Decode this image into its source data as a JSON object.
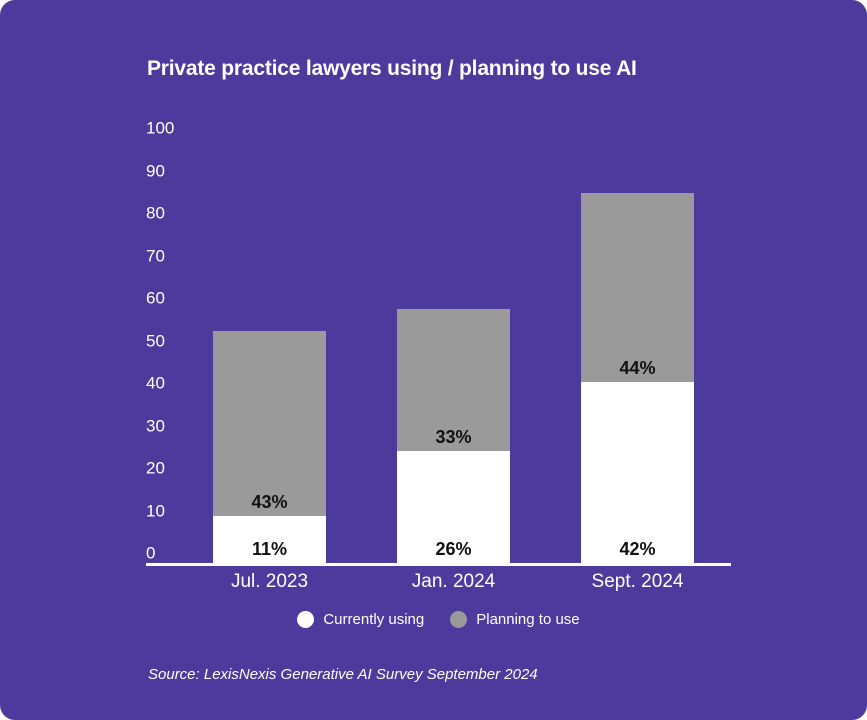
{
  "title": "Private practice lawyers using / planning to use AI",
  "source": "Source: LexisNexis Generative AI Survey September 2024",
  "colors": {
    "card_bg": "#4c3a9c",
    "page_bg": "#ffffff",
    "currently_using": "#ffffff",
    "planning_to_use": "#9a9a9a",
    "axis_line": "#ffffff",
    "data_label": "#111111",
    "text": "#ffffff"
  },
  "legend": {
    "items": [
      {
        "label": "Currently using",
        "color": "#ffffff"
      },
      {
        "label": "Planning to use",
        "color": "#9a9a9a"
      }
    ]
  },
  "chart_data": {
    "type": "bar",
    "stacked": true,
    "title": "Private practice lawyers using / planning to use AI",
    "categories": [
      "Jul. 2023",
      "Jan. 2024",
      "Sept. 2024"
    ],
    "series": [
      {
        "name": "Currently using",
        "color": "#ffffff",
        "values": [
          11,
          26,
          42
        ],
        "labels": [
          "11%",
          "26%",
          "42%"
        ]
      },
      {
        "name": "Planning to use",
        "color": "#9a9a9a",
        "values": [
          43,
          33,
          44
        ],
        "labels": [
          "43%",
          "33%",
          "44%"
        ]
      }
    ],
    "yticks": [
      0,
      10,
      20,
      30,
      40,
      50,
      60,
      70,
      80,
      90,
      100
    ],
    "ylim": [
      0,
      100
    ],
    "xlabel": "",
    "ylabel": "",
    "grid": false,
    "legend_position": "bottom"
  }
}
